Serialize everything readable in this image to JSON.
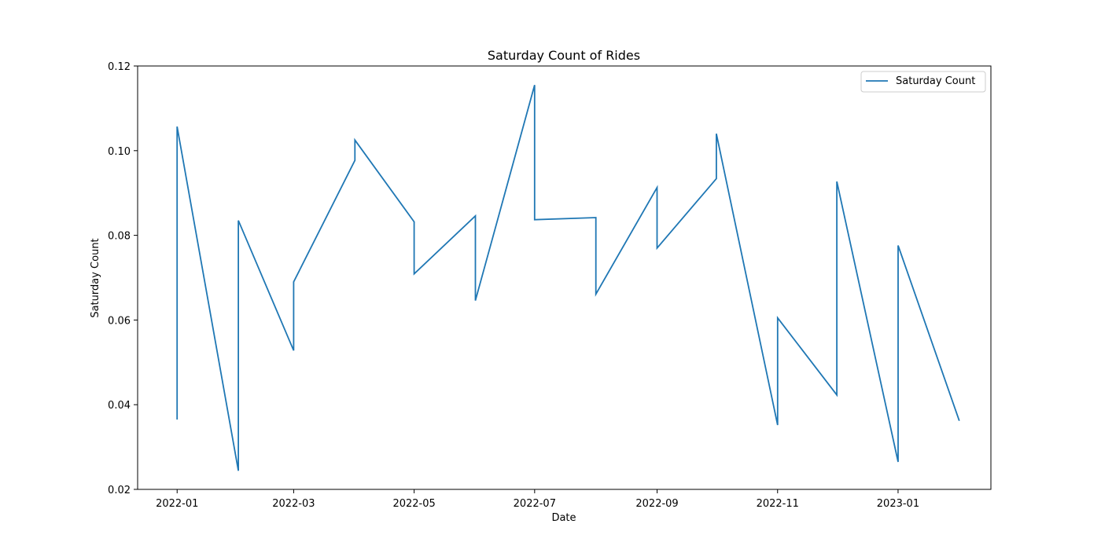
{
  "chart_data": {
    "type": "line",
    "title": "Saturday Count of Rides",
    "xlabel": "Date",
    "ylabel": "Saturday Count",
    "legend_position": "top-right",
    "grid": false,
    "xlim": [
      "2021-12-12",
      "2023-02-17"
    ],
    "ylim": [
      0.02,
      0.12
    ],
    "x_ticks": [
      "2022-01",
      "2022-03",
      "2022-05",
      "2022-07",
      "2022-09",
      "2022-11",
      "2023-01"
    ],
    "y_ticks": [
      "0.02",
      "0.04",
      "0.06",
      "0.08",
      "0.10",
      "0.12"
    ],
    "series": [
      {
        "name": "Saturday Count",
        "color": "#1f77b4",
        "points": [
          {
            "x": "2022-01-01",
            "y": 0.0365
          },
          {
            "x": "2022-01-01",
            "y": 0.1057
          },
          {
            "x": "2022-02-01",
            "y": 0.0244
          },
          {
            "x": "2022-02-01",
            "y": 0.0835
          },
          {
            "x": "2022-03-01",
            "y": 0.0528
          },
          {
            "x": "2022-03-01",
            "y": 0.069
          },
          {
            "x": "2022-04-01",
            "y": 0.0977
          },
          {
            "x": "2022-04-01",
            "y": 0.1025
          },
          {
            "x": "2022-05-01",
            "y": 0.0832
          },
          {
            "x": "2022-05-01",
            "y": 0.0709
          },
          {
            "x": "2022-06-01",
            "y": 0.0846
          },
          {
            "x": "2022-06-01",
            "y": 0.0646
          },
          {
            "x": "2022-07-01",
            "y": 0.1155
          },
          {
            "x": "2022-07-01",
            "y": 0.0837
          },
          {
            "x": "2022-08-01",
            "y": 0.0842
          },
          {
            "x": "2022-08-01",
            "y": 0.0661
          },
          {
            "x": "2022-09-01",
            "y": 0.0913
          },
          {
            "x": "2022-09-01",
            "y": 0.077
          },
          {
            "x": "2022-10-01",
            "y": 0.0934
          },
          {
            "x": "2022-10-01",
            "y": 0.104
          },
          {
            "x": "2022-11-01",
            "y": 0.0352
          },
          {
            "x": "2022-11-01",
            "y": 0.0605
          },
          {
            "x": "2022-12-01",
            "y": 0.0423
          },
          {
            "x": "2022-12-01",
            "y": 0.0927
          },
          {
            "x": "2023-01-01",
            "y": 0.0265
          },
          {
            "x": "2023-01-01",
            "y": 0.0776
          },
          {
            "x": "2023-02-01",
            "y": 0.0362
          }
        ]
      }
    ]
  }
}
